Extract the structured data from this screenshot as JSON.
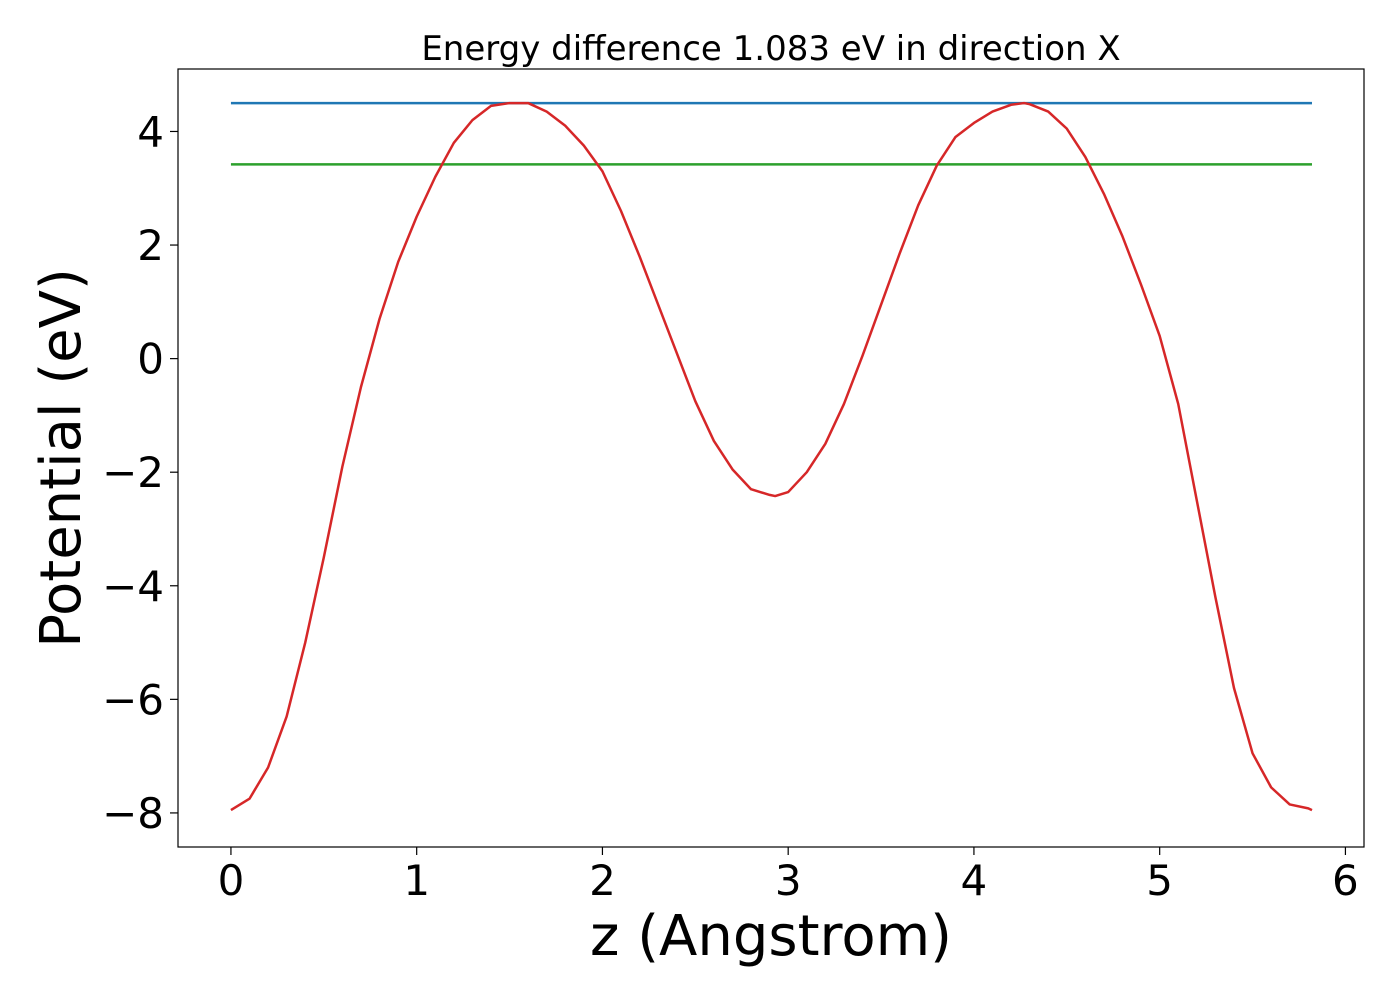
{
  "chart_data": {
    "type": "line",
    "title": "Energy difference 1.083 eV in direction X",
    "xlabel": "z (Angstrom)",
    "ylabel": "Potential (eV)",
    "xlim": [
      -0.285,
      6.1
    ],
    "ylim": [
      -8.6,
      5.1
    ],
    "x_ticks": [
      0,
      1,
      2,
      3,
      4,
      5,
      6
    ],
    "x_tick_labels": [
      "0",
      "1",
      "2",
      "3",
      "4",
      "5",
      "6"
    ],
    "y_ticks": [
      -8,
      -6,
      -4,
      -2,
      0,
      2,
      4
    ],
    "y_tick_labels": [
      "−8",
      "−6",
      "−4",
      "−2",
      "0",
      "2",
      "4"
    ],
    "grid": false,
    "legend": false,
    "series": [
      {
        "color": "#d62728",
        "x": [
          0.0,
          0.1,
          0.2,
          0.3,
          0.4,
          0.5,
          0.6,
          0.7,
          0.8,
          0.9,
          1.0,
          1.1,
          1.2,
          1.3,
          1.4,
          1.5,
          1.6,
          1.7,
          1.8,
          1.9,
          2.0,
          2.1,
          2.2,
          2.3,
          2.4,
          2.5,
          2.6,
          2.7,
          2.8,
          2.9,
          2.93,
          3.0,
          3.1,
          3.2,
          3.3,
          3.4,
          3.5,
          3.6,
          3.7,
          3.8,
          3.9,
          4.0,
          4.1,
          4.2,
          4.27,
          4.3,
          4.4,
          4.5,
          4.6,
          4.7,
          4.8,
          4.9,
          5.0,
          5.1,
          5.2,
          5.3,
          5.4,
          5.5,
          5.6,
          5.7,
          5.8,
          5.82
        ],
        "y": [
          -7.95,
          -7.75,
          -7.2,
          -6.3,
          -5.0,
          -3.5,
          -1.9,
          -0.5,
          0.7,
          1.7,
          2.5,
          3.2,
          3.8,
          4.2,
          4.45,
          4.5,
          4.5,
          4.35,
          4.1,
          3.75,
          3.3,
          2.6,
          1.8,
          0.95,
          0.1,
          -0.75,
          -1.45,
          -1.95,
          -2.3,
          -2.4,
          -2.42,
          -2.35,
          -2.0,
          -1.5,
          -0.8,
          0.05,
          0.95,
          1.85,
          2.7,
          3.4,
          3.9,
          4.15,
          4.35,
          4.47,
          4.5,
          4.48,
          4.35,
          4.05,
          3.55,
          2.9,
          2.15,
          1.3,
          0.4,
          -0.8,
          -2.5,
          -4.2,
          -5.8,
          -6.95,
          -7.55,
          -7.85,
          -7.92,
          -7.95
        ]
      },
      {
        "color": "#1f77b4",
        "x": [
          0.0,
          5.82
        ],
        "y": [
          4.5,
          4.5
        ]
      },
      {
        "color": "#2ca02c",
        "x": [
          0.0,
          5.82
        ],
        "y": [
          3.42,
          3.42
        ]
      }
    ]
  }
}
